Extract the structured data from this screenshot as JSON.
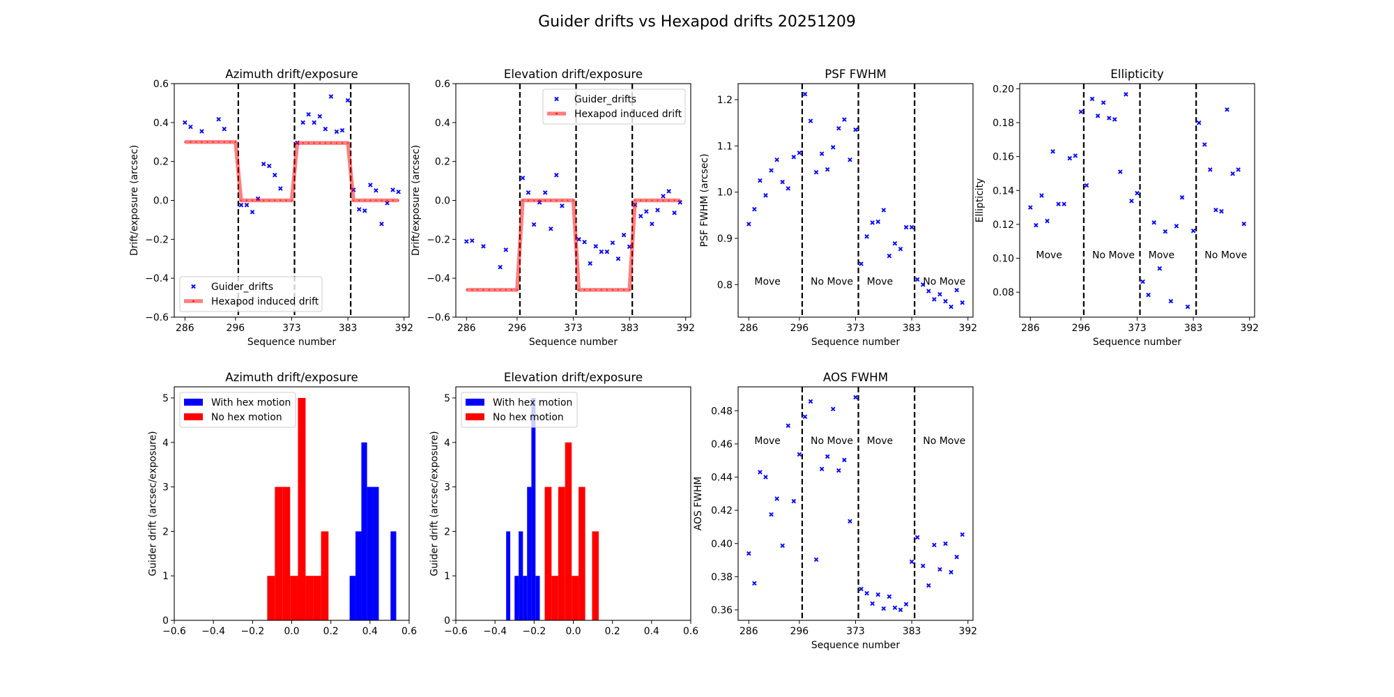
{
  "suptitle": "Guider drifts vs Hexapod drifts 20251209",
  "chart_data": [
    {
      "type": "scatter",
      "title": "Azimuth drift/exposure",
      "xlabel": "Sequence number",
      "ylabel": "Drift/exposure (arcsec)",
      "xlim": [
        -1.9,
        39.9
      ],
      "ylim": [
        -0.6,
        0.6
      ],
      "xticks": [
        0,
        9,
        19,
        29,
        39
      ],
      "xtick_labels": [
        "286",
        "296",
        "373",
        "383",
        "392"
      ],
      "yticks": [
        -0.6,
        -0.4,
        -0.2,
        0.0,
        0.2,
        0.4,
        0.6
      ],
      "ytick_labels": [
        "−0.6",
        "−0.4",
        "−0.2",
        "0.0",
        "0.2",
        "0.4",
        "0.6"
      ],
      "vlines": [
        9.5,
        19.5,
        29.5
      ],
      "legend": "lower-left",
      "series": [
        {
          "name": "Guider_drifts",
          "kind": "marker",
          "color": "#0000ff",
          "values": [
            0.4,
            0.378,
            null,
            0.355,
            null,
            null,
            0.417,
            0.367,
            null,
            null,
            -0.024,
            -0.024,
            -0.06,
            0.009,
            0.187,
            0.177,
            0.13,
            0.061,
            null,
            null,
            0.296,
            0.4,
            0.442,
            0.4,
            0.432,
            0.367,
            0.534,
            0.353,
            0.36,
            0.514,
            0.054,
            -0.046,
            -0.053,
            0.079,
            0.051,
            -0.121,
            -0.014,
            0.054,
            0.044
          ]
        },
        {
          "name": "Hexapod induced drift",
          "kind": "line",
          "color": "#ff0000",
          "values": [
            0.3,
            0.3,
            0.3,
            0.3,
            0.3,
            0.3,
            0.3,
            0.3,
            0.3,
            0.3,
            0,
            0,
            0,
            0,
            0,
            0,
            0,
            0,
            0,
            0,
            0.295,
            0.295,
            0.295,
            0.295,
            0.295,
            0.295,
            0.295,
            0.295,
            0.295,
            0.295,
            0,
            0,
            0,
            0,
            0,
            0,
            0,
            0,
            0
          ]
        }
      ],
      "annotations": []
    },
    {
      "type": "scatter",
      "title": "Elevation drift/exposure",
      "xlabel": "Sequence number",
      "ylabel": "Drift/exposure (arcsec)",
      "xlim": [
        -1.9,
        39.9
      ],
      "ylim": [
        -0.6,
        0.6
      ],
      "xticks": [
        0,
        9,
        19,
        29,
        39
      ],
      "xtick_labels": [
        "286",
        "296",
        "373",
        "383",
        "392"
      ],
      "yticks": [
        -0.6,
        -0.4,
        -0.2,
        0.0,
        0.2,
        0.4,
        0.6
      ],
      "ytick_labels": [
        "−0.6",
        "−0.4",
        "−0.2",
        "0.0",
        "0.2",
        "0.4",
        "0.6"
      ],
      "vlines": [
        9.5,
        19.5,
        29.5
      ],
      "legend": "upper-right",
      "series": [
        {
          "name": "Guider_drifts",
          "kind": "marker",
          "color": "#0000ff",
          "values": [
            -0.211,
            -0.207,
            null,
            -0.236,
            null,
            null,
            -0.343,
            -0.254,
            null,
            null,
            0.115,
            0.04,
            -0.124,
            -0.01,
            0.04,
            -0.146,
            0.13,
            -0.028,
            null,
            null,
            -0.2,
            -0.214,
            -0.324,
            -0.236,
            -0.264,
            -0.264,
            -0.218,
            -0.3,
            -0.178,
            -0.238,
            -0.023,
            -0.081,
            -0.057,
            -0.121,
            -0.05,
            0.022,
            0.047,
            -0.064,
            -0.01
          ]
        },
        {
          "name": "Hexapod induced drift",
          "kind": "line",
          "color": "#ff0000",
          "values": [
            -0.46,
            -0.46,
            -0.46,
            -0.46,
            -0.46,
            -0.46,
            -0.46,
            -0.46,
            -0.46,
            -0.46,
            0,
            0,
            0,
            0,
            0,
            0,
            0,
            0,
            0,
            0,
            -0.46,
            -0.46,
            -0.46,
            -0.46,
            -0.46,
            -0.46,
            -0.46,
            -0.46,
            -0.46,
            -0.46,
            0,
            0,
            0,
            0,
            0,
            0,
            0,
            0,
            0
          ]
        }
      ],
      "annotations": []
    },
    {
      "type": "scatter",
      "title": "PSF FWHM",
      "xlabel": "Sequence number",
      "ylabel": "PSF FWHM (arcsec)",
      "xlim": [
        -1.9,
        39.9
      ],
      "ylim": [
        0.7296,
        1.2347
      ],
      "xticks": [
        0,
        9,
        19,
        29,
        39
      ],
      "xtick_labels": [
        "286",
        "296",
        "373",
        "383",
        "392"
      ],
      "yticks": [
        0.8,
        0.9,
        1.0,
        1.1,
        1.2
      ],
      "ytick_labels": [
        "0.8",
        "0.9",
        "1.0",
        "1.1",
        "1.2"
      ],
      "vlines": [
        9.5,
        19.5,
        29.5
      ],
      "legend": "none",
      "series": [
        {
          "name": "",
          "kind": "marker",
          "color": "#0000ff",
          "values": [
            0.931,
            0.963,
            1.025,
            0.993,
            1.047,
            1.07,
            1.022,
            1.008,
            1.076,
            1.085,
            1.212,
            1.154,
            1.043,
            1.083,
            1.049,
            1.097,
            1.138,
            1.157,
            1.07,
            1.135,
            0.845,
            0.904,
            0.934,
            0.936,
            0.961,
            0.862,
            0.889,
            0.877,
            0.924,
            0.924,
            0.811,
            0.8,
            0.786,
            0.768,
            0.779,
            0.764,
            0.752,
            0.788,
            0.761
          ]
        }
      ],
      "annotations": [
        {
          "text": "Move",
          "x": 1,
          "y": 0.8
        },
        {
          "text": "No Move",
          "x": 11,
          "y": 0.8
        },
        {
          "text": "Move",
          "x": 21,
          "y": 0.8
        },
        {
          "text": "No Move",
          "x": 31,
          "y": 0.8
        }
      ]
    },
    {
      "type": "scatter",
      "title": "Ellipticity",
      "xlabel": "Sequence number",
      "ylabel": "Ellipticity",
      "xlim": [
        -1.9,
        39.9
      ],
      "ylim": [
        0.0653,
        0.203
      ],
      "xticks": [
        0,
        9,
        19,
        29,
        39
      ],
      "xtick_labels": [
        "286",
        "296",
        "373",
        "383",
        "392"
      ],
      "yticks": [
        0.08,
        0.1,
        0.12,
        0.14,
        0.16,
        0.18,
        0.2
      ],
      "ytick_labels": [
        "0.08",
        "0.10",
        "0.12",
        "0.14",
        "0.16",
        "0.18",
        "0.20"
      ],
      "vlines": [
        9.5,
        19.5,
        29.5
      ],
      "legend": "none",
      "series": [
        {
          "name": "",
          "kind": "marker",
          "color": "#0000ff",
          "values": [
            0.13,
            0.1195,
            0.137,
            0.122,
            0.163,
            0.132,
            0.132,
            0.159,
            0.1605,
            0.1864,
            0.143,
            0.194,
            0.184,
            0.1918,
            0.1827,
            0.1819,
            0.151,
            0.1967,
            0.1338,
            0.1384,
            0.0862,
            0.0784,
            0.1211,
            0.094,
            0.1158,
            0.0747,
            0.119,
            0.1359,
            0.0714,
            0.1162,
            0.1799,
            0.1671,
            0.1523,
            0.1285,
            0.1277,
            0.1877,
            0.1499,
            0.1523,
            0.1203
          ]
        }
      ],
      "annotations": [
        {
          "text": "Move",
          "x": 1,
          "y": 0.1
        },
        {
          "text": "No Move",
          "x": 11,
          "y": 0.1
        },
        {
          "text": "Move",
          "x": 21,
          "y": 0.1
        },
        {
          "text": "No Move",
          "x": 31,
          "y": 0.1
        }
      ]
    },
    {
      "type": "histogram",
      "title": "Azimuth drift/exposure",
      "xlabel": "",
      "ylabel": "Guider drift (arcsec/exposure)",
      "xlim": [
        -0.6,
        0.6
      ],
      "ylim": [
        0,
        5.25
      ],
      "xticks": [
        -0.6,
        -0.4,
        -0.2,
        0.0,
        0.2,
        0.4,
        0.6
      ],
      "xtick_labels": [
        "−0.6",
        "−0.4",
        "−0.2",
        "0.0",
        "0.2",
        "0.4",
        "0.6"
      ],
      "yticks": [
        0,
        1,
        2,
        3,
        4,
        5
      ],
      "ytick_labels": [
        "0",
        "1",
        "2",
        "3",
        "4",
        "5"
      ],
      "legend": "upper-left",
      "series": [
        {
          "name": "With hex motion",
          "color": "#0000ff",
          "bin_edges": [
            0.296,
            0.326,
            0.356,
            0.385,
            0.415,
            0.445,
            0.475,
            0.505,
            0.534
          ],
          "counts": [
            1,
            2,
            4,
            3,
            3,
            0,
            0,
            2
          ]
        },
        {
          "name": "No hex motion",
          "color": "#ff0000",
          "bin_edges": [
            -0.125,
            -0.086,
            -0.047,
            -0.008,
            0.032,
            0.071,
            0.11,
            0.15,
            0.188
          ],
          "counts": [
            1,
            3,
            3,
            1,
            5,
            1,
            1,
            2
          ]
        }
      ]
    },
    {
      "type": "histogram",
      "title": "Elevation drift/exposure",
      "xlabel": "",
      "ylabel": "Guider drift (arcsec/exposure)",
      "xlim": [
        -0.6,
        0.6
      ],
      "ylim": [
        0,
        5.25
      ],
      "xticks": [
        -0.6,
        -0.4,
        -0.2,
        0.0,
        0.2,
        0.4,
        0.6
      ],
      "xtick_labels": [
        "−0.6",
        "−0.4",
        "−0.2",
        "0.0",
        "0.2",
        "0.4",
        "0.6"
      ],
      "yticks": [
        0,
        1,
        2,
        3,
        4,
        5
      ],
      "ytick_labels": [
        "0",
        "1",
        "2",
        "3",
        "4",
        "5"
      ],
      "legend": "upper-left",
      "series": [
        {
          "name": "With hex motion",
          "color": "#0000ff",
          "bin_edges": [
            -0.343,
            -0.322,
            -0.3,
            -0.279,
            -0.257,
            -0.236,
            -0.214,
            -0.193,
            -0.171
          ],
          "counts": [
            2,
            0,
            1,
            2,
            1,
            3,
            5,
            1
          ]
        },
        {
          "name": "No hex motion",
          "color": "#ff0000",
          "bin_edges": [
            -0.146,
            -0.111,
            -0.077,
            -0.042,
            -0.008,
            0.027,
            0.061,
            0.096,
            0.13
          ],
          "counts": [
            3,
            1,
            3,
            4,
            1,
            3,
            0,
            2
          ]
        }
      ]
    },
    {
      "type": "scatter",
      "title": "AOS FWHM",
      "xlabel": "Sequence number",
      "ylabel": "AOS FWHM",
      "xlim": [
        -1.9,
        39.9
      ],
      "ylim": [
        0.3537,
        0.4944
      ],
      "xticks": [
        0,
        9,
        19,
        29,
        39
      ],
      "xtick_labels": [
        "286",
        "296",
        "373",
        "383",
        "392"
      ],
      "yticks": [
        0.36,
        0.38,
        0.4,
        0.42,
        0.44,
        0.46,
        0.48
      ],
      "ytick_labels": [
        "0.36",
        "0.38",
        "0.40",
        "0.42",
        "0.44",
        "0.46",
        "0.48"
      ],
      "vlines": [
        9.5,
        19.5,
        29.5
      ],
      "legend": "none",
      "series": [
        {
          "name": "",
          "kind": "marker",
          "color": "#0000ff",
          "values": [
            0.394,
            0.376,
            0.443,
            0.44,
            0.4175,
            0.427,
            0.3987,
            0.471,
            0.4255,
            0.4537,
            0.4764,
            0.4856,
            0.3903,
            0.4449,
            0.4524,
            0.481,
            0.444,
            0.4503,
            0.4134,
            0.4881,
            0.3726,
            0.37,
            0.3638,
            0.3692,
            0.3608,
            0.368,
            0.3613,
            0.36,
            0.3634,
            0.389,
            0.4037,
            0.3865,
            0.3747,
            0.3991,
            0.3844,
            0.3999,
            0.3827,
            0.3919,
            0.4054
          ]
        }
      ],
      "annotations": [
        {
          "text": "Move",
          "x": 1,
          "y": 0.46
        },
        {
          "text": "No Move",
          "x": 11,
          "y": 0.46
        },
        {
          "text": "Move",
          "x": 21,
          "y": 0.46
        },
        {
          "text": "No Move",
          "x": 31,
          "y": 0.46
        }
      ]
    }
  ]
}
